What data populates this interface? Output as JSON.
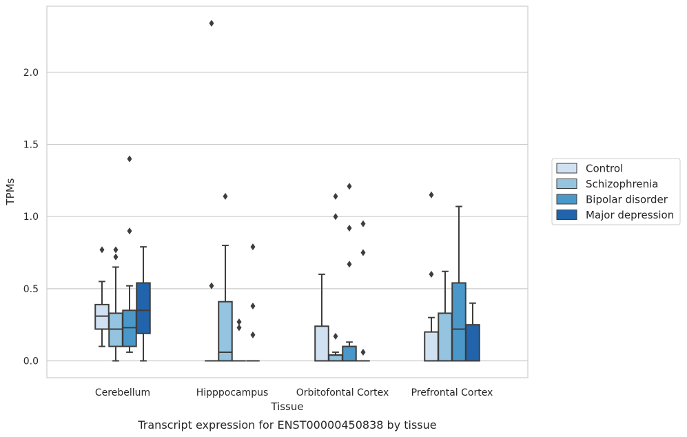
{
  "caption": "Transcript expression for ENST00000450838 by tissue",
  "chart_data": {
    "type": "box",
    "title": "",
    "xlabel": "Tissue",
    "ylabel": "TPMs",
    "ylim": [
      -0.11,
      2.46
    ],
    "yticks": [
      0.0,
      0.5,
      1.0,
      1.5,
      2.0
    ],
    "ytick_labels": [
      "0.0",
      "0.5",
      "1.0",
      "1.5",
      "2.0"
    ],
    "grid": "horizontal",
    "legend_position": "center-right, outside plot",
    "categories": [
      "Cerebellum",
      "Hipppocampus",
      "Orbitofontal Cortex",
      "Prefrontal Cortex"
    ],
    "series": [
      {
        "name": "Control",
        "color": "#d0e1f2",
        "boxes": [
          {
            "whisker_low": 0.1,
            "q1": 0.22,
            "median": 0.31,
            "q3": 0.39,
            "whisker_high": 0.55,
            "outliers": [
              0.77
            ]
          },
          {
            "whisker_low": 0.0,
            "q1": 0.0,
            "median": 0.0,
            "q3": 0.0,
            "whisker_high": 0.0,
            "outliers": [
              0.52,
              2.34
            ]
          },
          {
            "whisker_low": 0.0,
            "q1": 0.0,
            "median": 0.0,
            "q3": 0.24,
            "whisker_high": 0.6,
            "outliers": []
          },
          {
            "whisker_low": 0.0,
            "q1": 0.0,
            "median": 0.0,
            "q3": 0.2,
            "whisker_high": 0.3,
            "outliers": [
              0.6,
              1.15
            ]
          }
        ]
      },
      {
        "name": "Schizophrenia",
        "color": "#94c4df",
        "boxes": [
          {
            "whisker_low": 0.0,
            "q1": 0.1,
            "median": 0.22,
            "q3": 0.33,
            "whisker_high": 0.65,
            "outliers": [
              0.72,
              0.77
            ]
          },
          {
            "whisker_low": 0.0,
            "q1": 0.0,
            "median": 0.06,
            "q3": 0.41,
            "whisker_high": 0.8,
            "outliers": [
              1.14
            ]
          },
          {
            "whisker_low": 0.0,
            "q1": 0.0,
            "median": 0.04,
            "q3": 0.04,
            "whisker_high": 0.06,
            "outliers": [
              0.17,
              1.0,
              1.14
            ]
          },
          {
            "whisker_low": 0.0,
            "q1": 0.0,
            "median": 0.0,
            "q3": 0.33,
            "whisker_high": 0.62,
            "outliers": []
          }
        ]
      },
      {
        "name": "Bipolar disorder",
        "color": "#4a98c9",
        "boxes": [
          {
            "whisker_low": 0.06,
            "q1": 0.1,
            "median": 0.23,
            "q3": 0.35,
            "whisker_high": 0.52,
            "outliers": [
              0.9,
              1.4
            ]
          },
          {
            "whisker_low": 0.0,
            "q1": 0.0,
            "median": 0.0,
            "q3": 0.0,
            "whisker_high": 0.0,
            "outliers": [
              0.23,
              0.27
            ]
          },
          {
            "whisker_low": 0.0,
            "q1": 0.0,
            "median": 0.0,
            "q3": 0.1,
            "whisker_high": 0.13,
            "outliers": [
              0.67,
              0.92,
              1.21
            ]
          },
          {
            "whisker_low": 0.0,
            "q1": 0.0,
            "median": 0.22,
            "q3": 0.54,
            "whisker_high": 1.07,
            "outliers": []
          }
        ]
      },
      {
        "name": "Major depression",
        "color": "#2164ab",
        "boxes": [
          {
            "whisker_low": 0.0,
            "q1": 0.19,
            "median": 0.35,
            "q3": 0.54,
            "whisker_high": 0.79,
            "outliers": []
          },
          {
            "whisker_low": 0.0,
            "q1": 0.0,
            "median": 0.0,
            "q3": 0.0,
            "whisker_high": 0.0,
            "outliers": [
              0.18,
              0.38,
              0.79
            ]
          },
          {
            "whisker_low": 0.0,
            "q1": 0.0,
            "median": 0.0,
            "q3": 0.0,
            "whisker_high": 0.0,
            "outliers": [
              0.06,
              0.75,
              0.95
            ]
          },
          {
            "whisker_low": 0.0,
            "q1": 0.0,
            "median": 0.0,
            "q3": 0.25,
            "whisker_high": 0.4,
            "outliers": []
          }
        ]
      }
    ]
  }
}
